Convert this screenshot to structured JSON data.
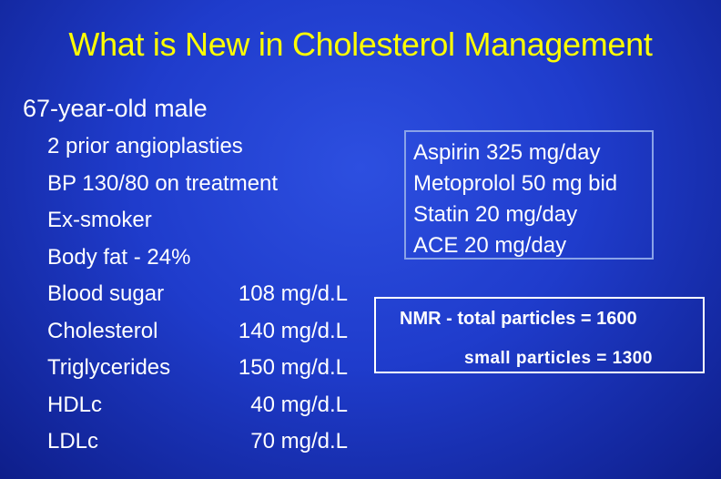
{
  "slide": {
    "title": "What is New in Cholesterol Management",
    "subtitle": "67-year-old male",
    "history": [
      {
        "label": "2 prior angioplasties",
        "value": ""
      },
      {
        "label": "BP 130/80 on treatment",
        "value": ""
      },
      {
        "label": "Ex-smoker",
        "value": ""
      },
      {
        "label": "Body fat - 24%",
        "value": ""
      },
      {
        "label": "Blood sugar",
        "value": "108 mg/d.L"
      },
      {
        "label": "Cholesterol",
        "value": "140 mg/d.L"
      },
      {
        "label": "Triglycerides",
        "value": "150 mg/d.L"
      },
      {
        "label": "HDLc",
        "value": "40 mg/d.L"
      },
      {
        "label": "LDLc",
        "value": "70 mg/d.L"
      }
    ],
    "medications": [
      "Aspirin 325 mg/day",
      "Metoprolol 50 mg bid",
      "Statin 20 mg/day",
      "ACE 20 mg/day"
    ],
    "nmr": {
      "line1": "NMR - total particles = 1600",
      "line2": "small particles = 1300"
    },
    "colors": {
      "title": "#ffff00",
      "text": "#ffffff",
      "background": "#1f3ccc"
    }
  }
}
